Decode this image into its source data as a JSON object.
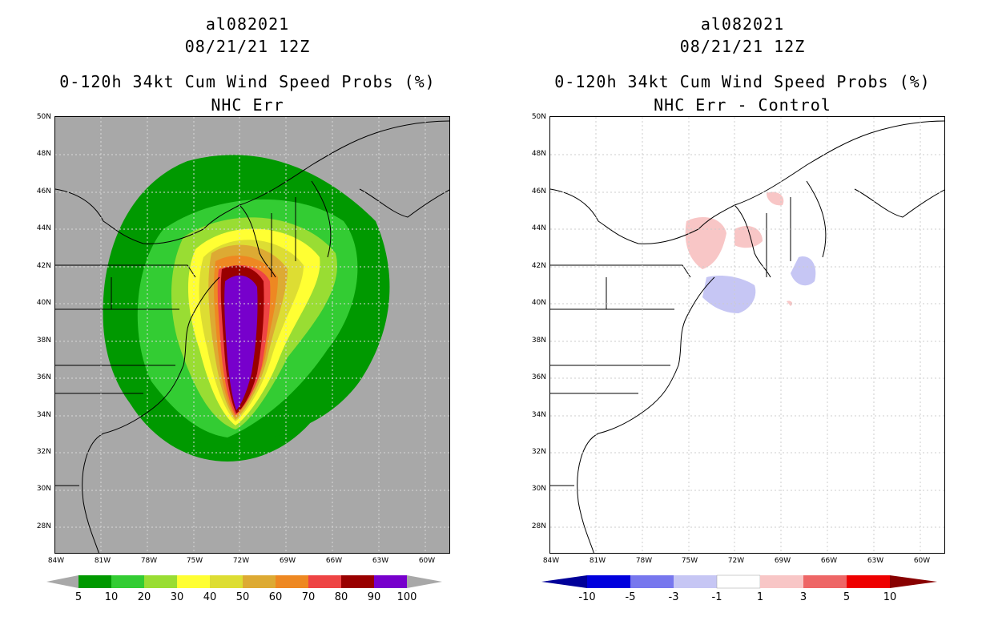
{
  "left": {
    "storm_id": "al082021",
    "datetime": "08/21/21 12Z",
    "product": "0-120h 34kt Cum Wind Speed Probs (%)",
    "subtitle": "NHC Err",
    "lat_labels": [
      "50N",
      "48N",
      "46N",
      "44N",
      "42N",
      "40N",
      "38N",
      "36N",
      "34N",
      "32N",
      "30N",
      "28N"
    ],
    "lon_labels": [
      "84W",
      "81W",
      "78W",
      "75W",
      "72W",
      "69W",
      "66W",
      "63W",
      "60W"
    ],
    "colorbar": {
      "labels": [
        "5",
        "10",
        "20",
        "30",
        "40",
        "50",
        "60",
        "70",
        "80",
        "90",
        "100"
      ],
      "colors": [
        "#009900",
        "#33cc33",
        "#99dd33",
        "#ffff33",
        "#dddd33",
        "#ddaa33",
        "#ee8822",
        "#ee4444",
        "#990000",
        "#7700cc"
      ],
      "under_color": "#a8a8a8",
      "over_color": "#a8a8a8"
    }
  },
  "right": {
    "storm_id": "al082021",
    "datetime": "08/21/21 12Z",
    "product": "0-120h 34kt Cum Wind Speed Probs (%)",
    "subtitle": "NHC Err - Control",
    "lat_labels": [
      "50N",
      "48N",
      "46N",
      "44N",
      "42N",
      "40N",
      "38N",
      "36N",
      "34N",
      "32N",
      "30N",
      "28N"
    ],
    "lon_labels": [
      "84W",
      "81W",
      "78W",
      "75W",
      "72W",
      "69W",
      "66W",
      "63W",
      "60W"
    ],
    "colorbar": {
      "labels": [
        "-10",
        "-5",
        "-3",
        "-1",
        "1",
        "3",
        "5",
        "10"
      ],
      "colors": [
        "#0000dd",
        "#7777ee",
        "#c6c6f4",
        "#ffffff",
        "#f8c6c6",
        "#ee6666",
        "#ee0000"
      ],
      "under_color": "#000099",
      "over_color": "#880000"
    }
  }
}
